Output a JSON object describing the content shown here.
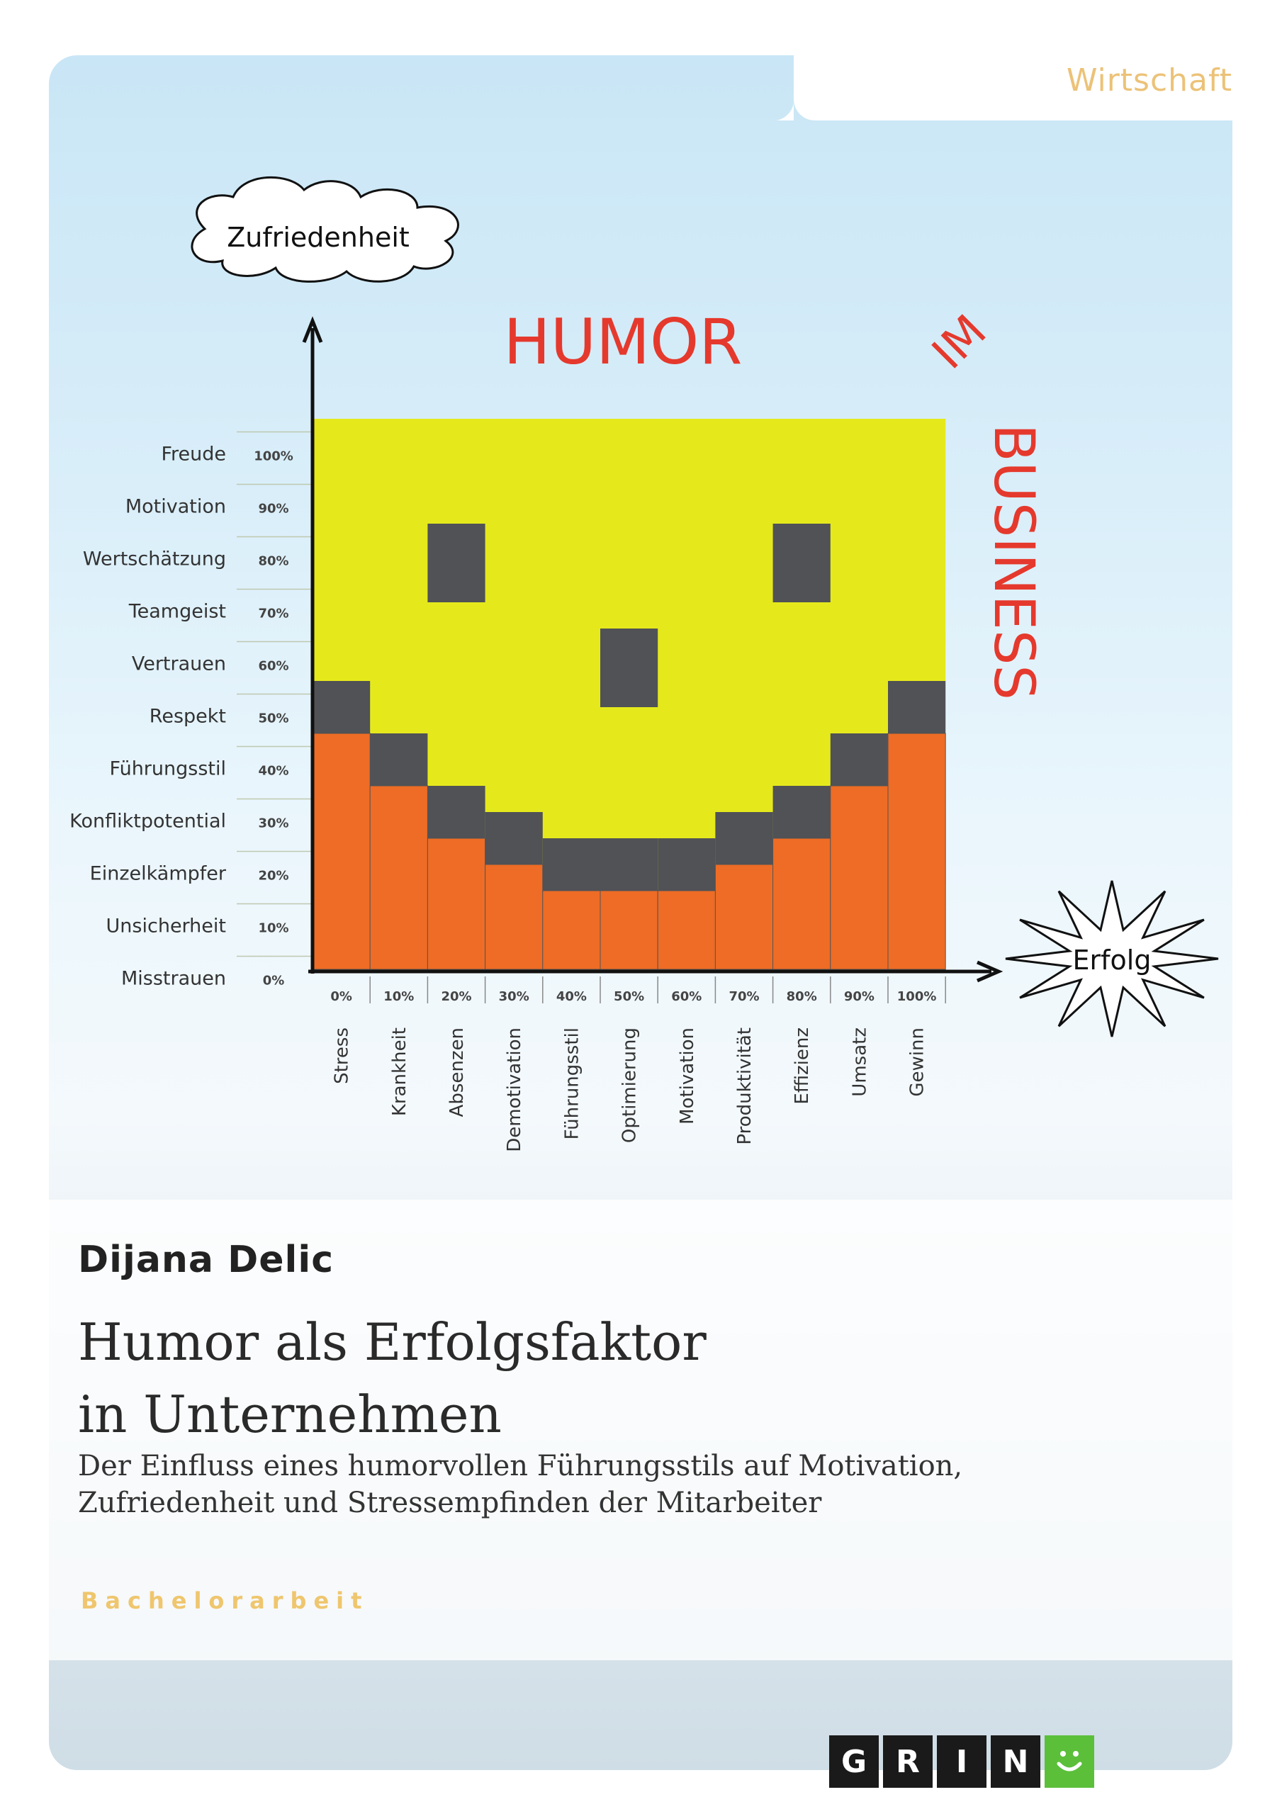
{
  "category": "Wirtschaft",
  "chart": {
    "y_title": "Zufriedenheit",
    "x_title": "Erfolg",
    "word_top": "HUMOR",
    "word_middle": "IM",
    "word_right": "BUSINESS",
    "colors": {
      "yellow": "#e5e91c",
      "orange": "#ee6c25",
      "gray": "#505256",
      "red": "#e5392d"
    }
  },
  "chart_data": {
    "type": "bar",
    "categories": [
      "Stress",
      "Krankheit",
      "Absenzen",
      "Demotivation",
      "Führungsstil",
      "Optimierung",
      "Motivation",
      "Produktivität",
      "Effizienz",
      "Umsatz",
      "Gewinn"
    ],
    "x_ticks": [
      "0%",
      "10%",
      "20%",
      "30%",
      "40%",
      "50%",
      "60%",
      "70%",
      "80%",
      "90%",
      "100%"
    ],
    "y_ticks": [
      "0%",
      "10%",
      "20%",
      "30%",
      "40%",
      "50%",
      "60%",
      "70%",
      "80%",
      "90%",
      "100%"
    ],
    "y_labels": [
      "Misstrauen",
      "Unsicherheit",
      "Einzelkämpfer",
      "Konfliktpotential",
      "Führungsstil",
      "Respekt",
      "Vertrauen",
      "Teamgeist",
      "Wertschätzung",
      "Motivation",
      "Freude"
    ],
    "values": [
      45,
      35,
      25,
      20,
      15,
      15,
      15,
      20,
      25,
      35,
      45
    ],
    "ylim": [
      0,
      105
    ]
  },
  "author": "Dijana Delic",
  "title_line1": "Humor als Erfolgsfaktor",
  "title_line2": "in Unternehmen",
  "subtitle_line1": "Der Einfluss eines humorvollen Führungsstils auf Motivation,",
  "subtitle_line2": "Zufriedenheit und Stressempfinden der Mitarbeiter",
  "doctype": "Bachelorarbeit",
  "logo_letters": [
    "G",
    "R",
    "I",
    "N"
  ]
}
